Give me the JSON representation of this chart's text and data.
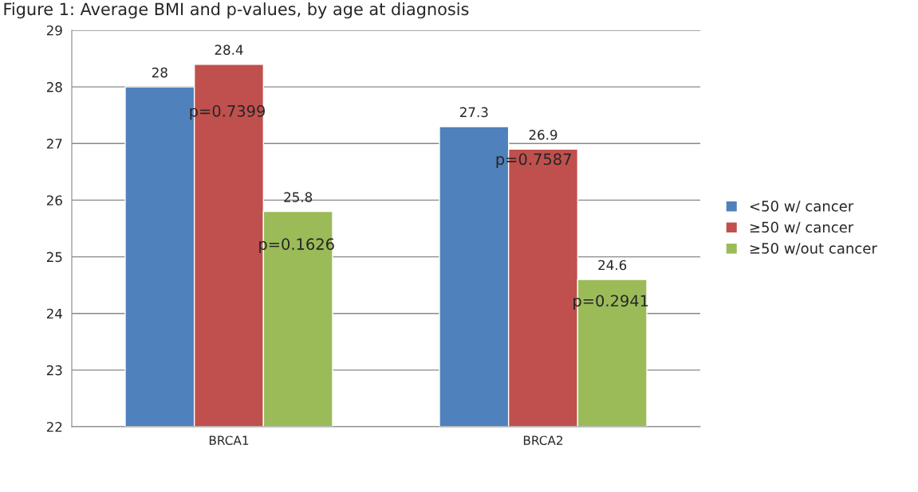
{
  "chart_data": {
    "type": "bar",
    "title": "Figure 1: Average BMI and p-values, by age at diagnosis",
    "categories": [
      "BRCA1",
      "BRCA2"
    ],
    "series": [
      {
        "name": "<50 w/ cancer",
        "color": "#4f81bd",
        "values": [
          28,
          27.3
        ]
      },
      {
        "name": "≥50 w/ cancer",
        "color": "#c0504d",
        "values": [
          28.4,
          26.9
        ]
      },
      {
        "name": "≥50 w/out cancer",
        "color": "#9bbb59",
        "values": [
          25.8,
          24.6
        ]
      }
    ],
    "ylim": [
      22,
      29
    ],
    "yticks": [
      22,
      23,
      24,
      25,
      26,
      27,
      28,
      29
    ],
    "grid": "y",
    "legend": "right",
    "data_labels": true,
    "annotations": [
      "p=0.7399",
      "p=0.1626",
      "p=0.7587",
      "p=0.2941"
    ]
  }
}
